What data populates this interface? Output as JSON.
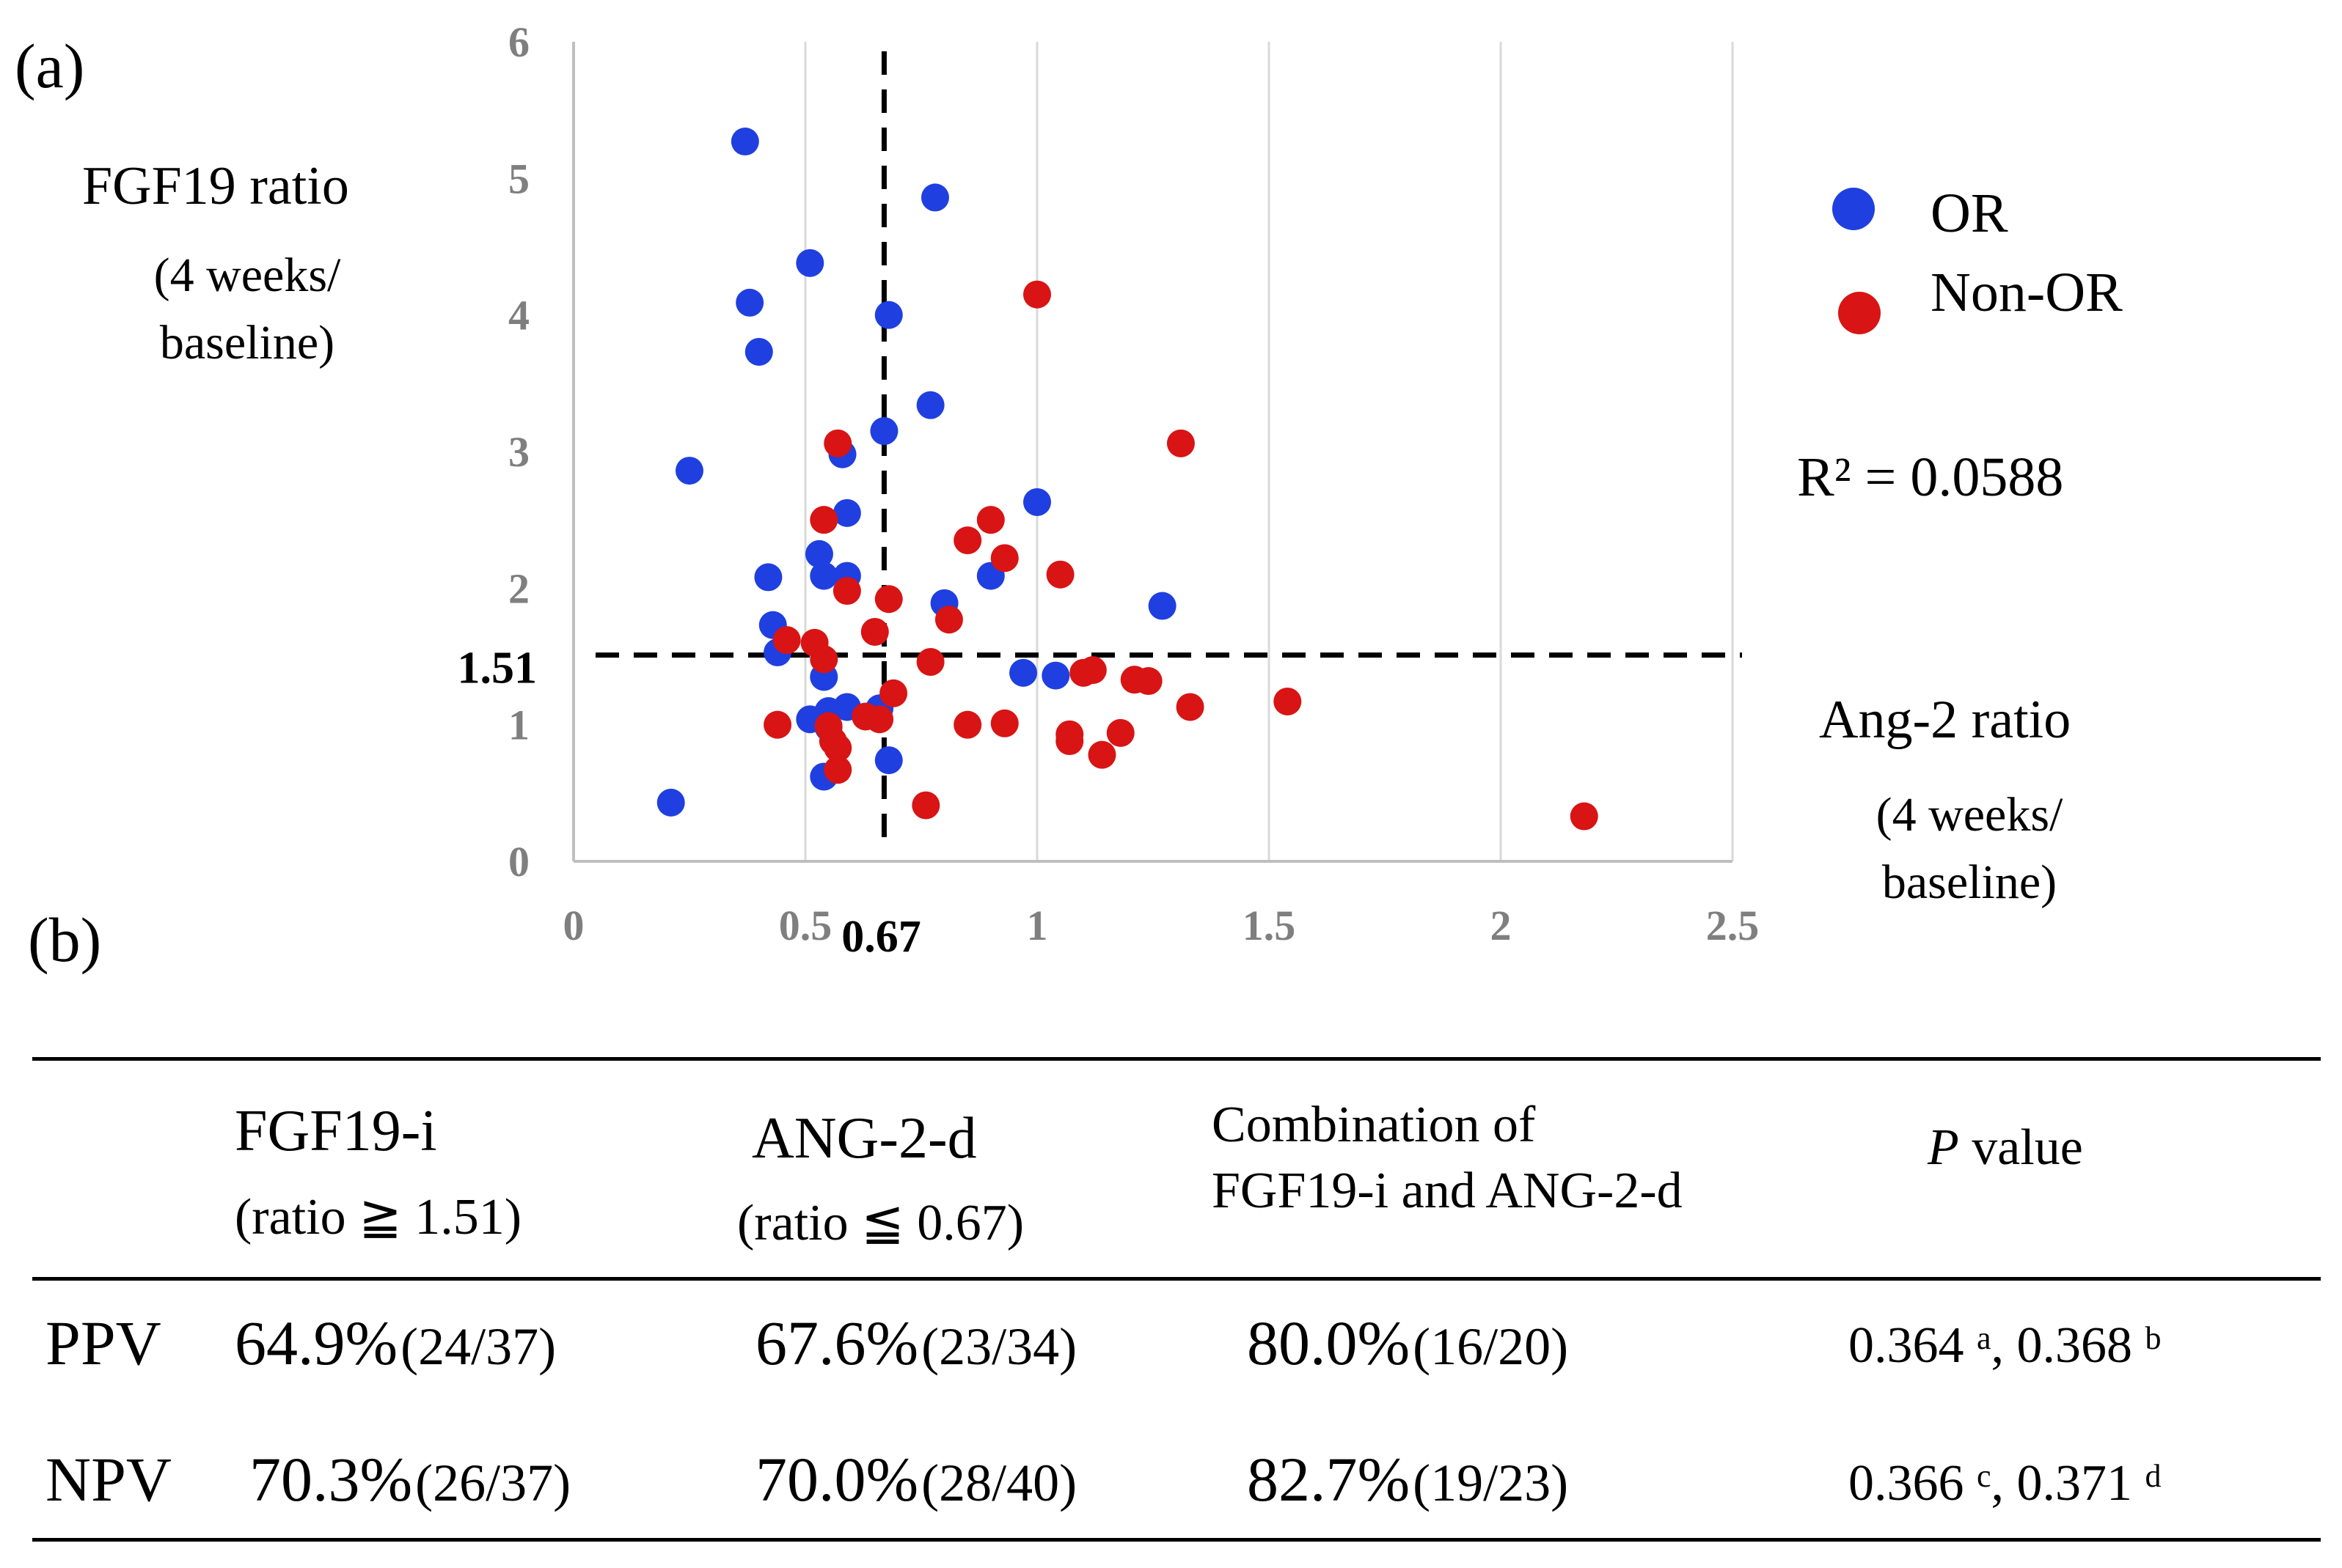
{
  "chart_data": {
    "type": "scatter",
    "panel_label": "(a)",
    "ylabel": "FGF19 ratio",
    "ylabel_sub": [
      "(4 weeks/",
      "baseline)"
    ],
    "xlabel": "Ang-2 ratio",
    "xlabel_sub": [
      "(4 weeks/",
      "baseline)"
    ],
    "xlim": [
      0,
      2.5
    ],
    "ylim": [
      0,
      6
    ],
    "x_ticks": [
      "0",
      "0.5",
      "1",
      "1.5",
      "2",
      "2.5"
    ],
    "y_ticks": [
      "0",
      "1",
      "2",
      "3",
      "4",
      "5",
      "6"
    ],
    "grid": "vertical",
    "annotation": "R² = 0.0588",
    "cutoffs": {
      "x": 0.67,
      "x_label": "0.67",
      "y": 1.51,
      "y_label": "1.51"
    },
    "legend": [
      {
        "name": "OR",
        "color": "#1f3fe0"
      },
      {
        "name": "Non-OR",
        "color": "#d81414"
      }
    ],
    "series": [
      {
        "name": "OR",
        "color": "#1f3fe0",
        "points": [
          [
            0.37,
            5.27
          ],
          [
            0.78,
            4.86
          ],
          [
            0.51,
            4.38
          ],
          [
            0.38,
            4.09
          ],
          [
            0.68,
            4.0
          ],
          [
            0.4,
            3.73
          ],
          [
            0.77,
            3.34
          ],
          [
            0.67,
            3.15
          ],
          [
            0.58,
            2.98
          ],
          [
            0.25,
            2.86
          ],
          [
            1.0,
            2.63
          ],
          [
            0.59,
            2.55
          ],
          [
            0.53,
            2.25
          ],
          [
            0.42,
            2.08
          ],
          [
            0.54,
            2.09
          ],
          [
            0.59,
            2.09
          ],
          [
            0.9,
            2.09
          ],
          [
            1.27,
            1.87
          ],
          [
            0.8,
            1.89
          ],
          [
            0.43,
            1.73
          ],
          [
            0.44,
            1.53
          ],
          [
            0.54,
            1.35
          ],
          [
            0.97,
            1.38
          ],
          [
            1.04,
            1.36
          ],
          [
            0.55,
            1.1
          ],
          [
            0.59,
            1.13
          ],
          [
            0.51,
            1.04
          ],
          [
            0.55,
            0.98
          ],
          [
            0.66,
            1.12
          ],
          [
            0.68,
            0.74
          ],
          [
            0.54,
            0.62
          ],
          [
            0.21,
            0.43
          ]
        ]
      },
      {
        "name": "Non-OR",
        "color": "#d81414",
        "points": [
          [
            1.0,
            4.15
          ],
          [
            1.31,
            3.06
          ],
          [
            0.57,
            3.06
          ],
          [
            0.54,
            2.5
          ],
          [
            0.9,
            2.5
          ],
          [
            0.85,
            2.35
          ],
          [
            0.93,
            2.22
          ],
          [
            1.05,
            2.1
          ],
          [
            0.59,
            1.98
          ],
          [
            0.68,
            1.92
          ],
          [
            0.81,
            1.77
          ],
          [
            0.65,
            1.68
          ],
          [
            0.46,
            1.62
          ],
          [
            0.52,
            1.6
          ],
          [
            0.54,
            1.48
          ],
          [
            0.77,
            1.46
          ],
          [
            1.12,
            1.4
          ],
          [
            1.1,
            1.38
          ],
          [
            1.21,
            1.33
          ],
          [
            1.24,
            1.32
          ],
          [
            0.69,
            1.23
          ],
          [
            1.54,
            1.17
          ],
          [
            1.33,
            1.13
          ],
          [
            0.63,
            1.06
          ],
          [
            0.66,
            1.04
          ],
          [
            0.44,
            1.0
          ],
          [
            0.55,
            0.99
          ],
          [
            0.85,
            1.0
          ],
          [
            0.93,
            1.01
          ],
          [
            1.07,
            0.93
          ],
          [
            1.18,
            0.94
          ],
          [
            1.07,
            0.88
          ],
          [
            0.56,
            0.88
          ],
          [
            1.14,
            0.78
          ],
          [
            0.57,
            0.83
          ],
          [
            0.57,
            0.67
          ],
          [
            0.76,
            0.41
          ],
          [
            2.18,
            0.33
          ]
        ]
      }
    ]
  },
  "table": {
    "panel_label": "(b)",
    "headers": {
      "fgf": {
        "main": "FGF19-i",
        "sub": "(ratio ≧ 1.51)"
      },
      "ang": {
        "main": "ANG-2-d",
        "sub": "(ratio ≦ 0.67)"
      },
      "comb": {
        "line1": "Combination of",
        "line2": "FGF19-i and ANG-2-d"
      },
      "p": {
        "italic": "P",
        "rest": " value"
      }
    },
    "rows": [
      {
        "label": "PPV",
        "fgf": {
          "pct": "64.9%",
          "frac": "(24/37)"
        },
        "ang": {
          "pct": "67.6%",
          "frac": "(23/34)"
        },
        "comb": {
          "pct": "80.0%",
          "frac": "(16/20)"
        },
        "p1": "0.364",
        "p1_sup": "a",
        "sep": ", ",
        "p2": "0.368",
        "p2_sup": "b"
      },
      {
        "label": "NPV",
        "fgf": {
          "pct": "70.3%",
          "frac": "(26/37)"
        },
        "ang": {
          "pct": "70.0%",
          "frac": "(28/40)"
        },
        "comb": {
          "pct": "82.7%",
          "frac": "(19/23)"
        },
        "p1": "0.366",
        "p1_sup": "c",
        "sep": ",  ",
        "p2": "0.371",
        "p2_sup": "d"
      }
    ]
  }
}
